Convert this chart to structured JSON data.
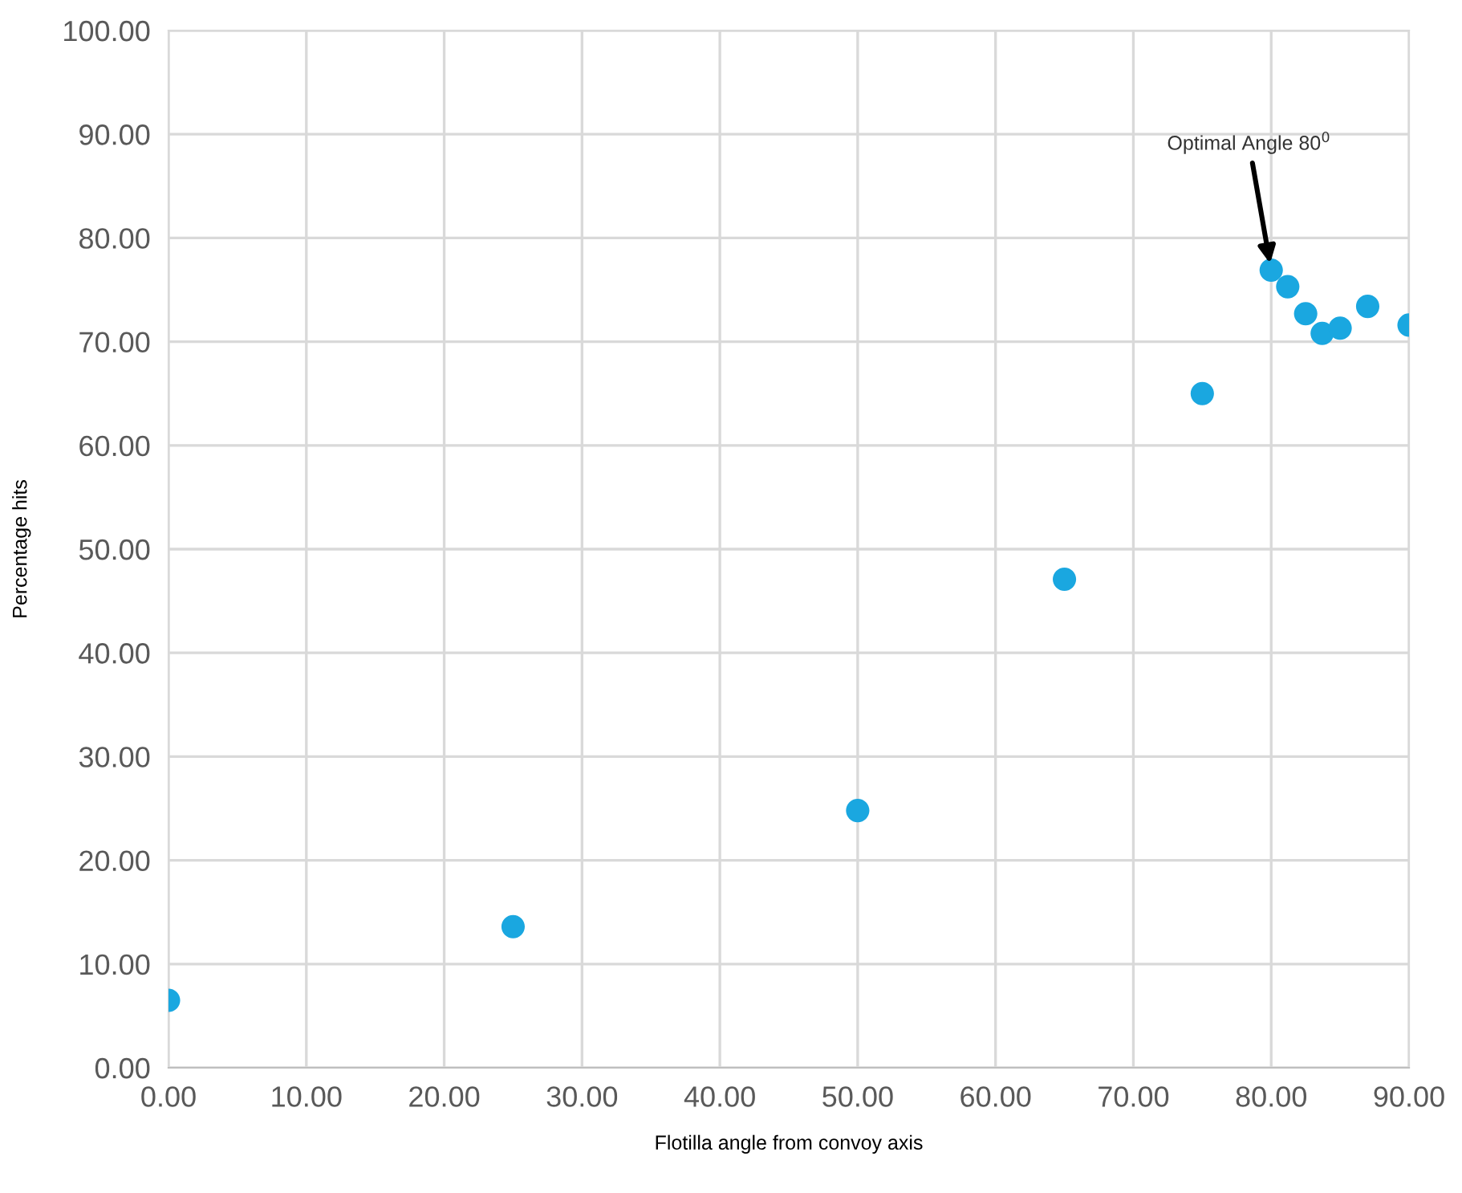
{
  "chart_data": {
    "type": "scatter",
    "xlabel": "Flotilla angle from convoy axis",
    "ylabel": "Percentage hits",
    "x": [
      0,
      25,
      50,
      65,
      75,
      80,
      81.2,
      82.5,
      83.7,
      85.0,
      87.0,
      90
    ],
    "series": [
      {
        "color": "#1aa7e0",
        "values": [
          6.5,
          13.6,
          24.8,
          47.1,
          65.0,
          76.9,
          75.3,
          72.7,
          70.8,
          71.3,
          73.4,
          71.6
        ]
      }
    ],
    "annotations": [
      {
        "text": "Optimal Angle 80$^{0}$",
        "x": 80,
        "y": 76.9
      }
    ],
    "xlim": [
      0,
      90
    ],
    "ylim": [
      0,
      100
    ],
    "xticks": [
      {
        "value": 0,
        "label": "0.00"
      },
      {
        "value": 10,
        "label": "10.00"
      },
      {
        "value": 20,
        "label": "20.00"
      },
      {
        "value": 30,
        "label": "30.00"
      },
      {
        "value": 40,
        "label": "40.00"
      },
      {
        "value": 50,
        "label": "50.00"
      },
      {
        "value": 60,
        "label": "60.00"
      },
      {
        "value": 70,
        "label": "70.00"
      },
      {
        "value": 80,
        "label": "80.00"
      },
      {
        "value": 90,
        "label": "90.00"
      }
    ],
    "yticks": [
      {
        "value": 0,
        "label": "0.00"
      },
      {
        "value": 10,
        "label": "10.00"
      },
      {
        "value": 20,
        "label": "20.00"
      },
      {
        "value": 30,
        "label": "30.00"
      },
      {
        "value": 40,
        "label": "40.00"
      },
      {
        "value": 50,
        "label": "50.00"
      },
      {
        "value": 60,
        "label": "60.00"
      },
      {
        "value": 70,
        "label": "70.00"
      },
      {
        "value": 80,
        "label": "80.00"
      },
      {
        "value": 90,
        "label": "90.00"
      },
      {
        "value": 100,
        "label": "100.00"
      }
    ],
    "grid": true,
    "marker": "circle",
    "legend": false
  }
}
